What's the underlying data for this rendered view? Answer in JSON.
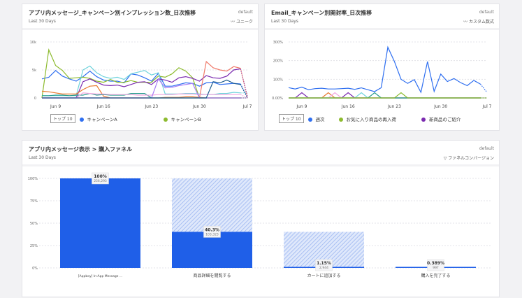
{
  "cards": [
    {
      "title": "アプリ内メッセージ_キャンペーン別インプレッション数_日次推移",
      "subtitle": "Last 30 Days",
      "tag": "default",
      "mode": "ユニーク",
      "mode_icon": "trend-icon",
      "legend_badge": "トップ 10",
      "legend": [
        {
          "name": "キャンペーンA",
          "color": "#2f6ff0"
        },
        {
          "name": "キャンペーンB",
          "color": "#8dbb2f"
        }
      ]
    },
    {
      "title": "Email_キャンペーン別開封率_日次推移",
      "subtitle": "Last 30 Days",
      "tag": "default",
      "mode": "カスタム数式",
      "mode_icon": "trend-icon",
      "legend_badge": "トップ 10",
      "legend": [
        {
          "name": "週次",
          "color": "#2f6ff0"
        },
        {
          "name": "お気に入り商品の再入荷",
          "color": "#8dbb2f"
        },
        {
          "name": "新商品のご紹介",
          "color": "#7b2bb0"
        }
      ]
    },
    {
      "title": "アプリ内メッセージ表示 > 購入ファネル",
      "subtitle": "Last 30 Days",
      "tag": "default",
      "mode": "ファネルコンバージョン",
      "mode_icon": "funnel-icon"
    }
  ],
  "chart_data": [
    {
      "type": "line",
      "x_ticks": [
        "Jun 9",
        "Jun 16",
        "Jun 23",
        "Jun 30",
        "Jul 7"
      ],
      "x_start": "Jun 7",
      "x_end": "Jul 7",
      "y_ticks": [
        "0",
        "5k",
        "10k"
      ],
      "ylim": [
        0,
        10000
      ],
      "grid": true,
      "series": [
        {
          "name": "キャンペーンA",
          "color": "#2f6ff0",
          "values": [
            3400,
            3700,
            4900,
            3900,
            3400,
            3000,
            3800,
            4800,
            3800,
            3200,
            3000,
            3000,
            2700,
            4300,
            4100,
            3600,
            3000,
            4400,
            2100,
            2100,
            2400,
            2700,
            2600,
            2100,
            2700,
            2800,
            2400,
            2500,
            2600,
            2500,
            200
          ]
        },
        {
          "name": "キャンペーンB",
          "color": "#8dbb2f",
          "values": [
            0,
            8600,
            5800,
            4900,
            3500,
            3600,
            3700,
            3500,
            3000,
            2800,
            3300,
            2800,
            2800,
            3100,
            2800,
            2800,
            2800,
            3900,
            3700,
            4300,
            5400,
            4800,
            3600,
            0,
            0,
            0,
            0,
            0,
            0,
            0,
            0
          ]
        },
        {
          "color": "#6fd3dc",
          "values": [
            400,
            400,
            400,
            400,
            400,
            400,
            5000,
            5700,
            4500,
            3800,
            3500,
            3700,
            3300,
            4300,
            4600,
            4900,
            4100,
            4500,
            700,
            700,
            700,
            800,
            800,
            700,
            600,
            600,
            800,
            800,
            1000,
            900,
            900
          ]
        },
        {
          "color": "#7b2bb0",
          "values": [
            0,
            0,
            0,
            0,
            0,
            0,
            2900,
            3400,
            2800,
            2300,
            2200,
            2300,
            2000,
            2400,
            2800,
            2900,
            2400,
            3400,
            3200,
            2800,
            3600,
            3800,
            3500,
            3000,
            4000,
            3600,
            3500,
            3900,
            5000,
            5200,
            300
          ]
        },
        {
          "color": "#e8792f",
          "values": [
            1200,
            1100,
            900,
            700,
            700,
            700,
            1500,
            2100,
            2200,
            300,
            0,
            0,
            0,
            0,
            0,
            0,
            0,
            0,
            100,
            100,
            100,
            200,
            200,
            100,
            0,
            0,
            0,
            0,
            0,
            0,
            0
          ]
        },
        {
          "color": "#f07a6a",
          "values": [
            0,
            0,
            0,
            0,
            0,
            0,
            0,
            0,
            0,
            0,
            0,
            0,
            0,
            0,
            0,
            0,
            0,
            0,
            0,
            0,
            0,
            0,
            0,
            0,
            6500,
            5400,
            5000,
            4800,
            5600,
            5300,
            0
          ]
        },
        {
          "color": "#2a9d8f",
          "values": [
            400,
            400,
            500,
            500,
            400,
            500,
            500,
            800,
            500,
            600,
            500,
            500,
            500,
            800,
            800,
            800,
            0,
            0,
            0,
            0,
            0,
            0,
            0,
            0,
            0,
            0,
            0,
            0,
            0,
            0,
            0
          ]
        },
        {
          "color": "#f2a6e0",
          "values": [
            0,
            0,
            0,
            0,
            0,
            0,
            900,
            800,
            700,
            700,
            600,
            600,
            600,
            600,
            500,
            500,
            500,
            600,
            600,
            600,
            700,
            700,
            700,
            600,
            600,
            600,
            600,
            600,
            600,
            600,
            0
          ]
        },
        {
          "color": "#a77cf5",
          "values": [
            0,
            0,
            0,
            0,
            0,
            0,
            0,
            0,
            0,
            0,
            0,
            0,
            0,
            0,
            0,
            0,
            0,
            3400,
            1800,
            1900,
            2200,
            2400,
            2600,
            0,
            0,
            0,
            0,
            0,
            0,
            0,
            0
          ]
        },
        {
          "color": "#1f5d8f",
          "values": [
            0,
            0,
            0,
            0,
            0,
            0,
            0,
            0,
            0,
            0,
            0,
            0,
            0,
            0,
            0,
            0,
            0,
            0,
            0,
            0,
            0,
            0,
            0,
            0,
            0,
            2900,
            2700,
            3200,
            2600,
            2400,
            0
          ]
        }
      ]
    },
    {
      "type": "line",
      "x_ticks": [
        "Jun 9",
        "Jun 16",
        "Jun 23",
        "Jun 30",
        "Jul 7"
      ],
      "x_start": "Jun 7",
      "x_end": "Jul 7",
      "y_ticks": [
        "0.00%",
        "100%",
        "200%",
        "300%"
      ],
      "ylim": [
        0,
        300
      ],
      "grid": true,
      "series": [
        {
          "name": "週次",
          "color": "#2f6ff0",
          "values": [
            55,
            48,
            58,
            44,
            50,
            52,
            48,
            48,
            50,
            52,
            46,
            54,
            44,
            34,
            55,
            272,
            195,
            100,
            78,
            98,
            30,
            195,
            35,
            128,
            88,
            104,
            82,
            66,
            94,
            74,
            30
          ]
        },
        {
          "name": "お気に入り商品の再入荷",
          "color": "#8dbb2f",
          "values": [
            0,
            0,
            0,
            0,
            0,
            0,
            0,
            0,
            0,
            0,
            0,
            0,
            0,
            0,
            0,
            0,
            0,
            0,
            0,
            0,
            0,
            0,
            0,
            0,
            0,
            0,
            0,
            0,
            0,
            0,
            0
          ]
        },
        {
          "name": "新商品のご紹介",
          "color": "#7b2bb0",
          "values": [
            0,
            0,
            28,
            0,
            0,
            0,
            0,
            0,
            0,
            28,
            0,
            0,
            0,
            0,
            0,
            0,
            0,
            0,
            0,
            0,
            0,
            0,
            0,
            0,
            0,
            0,
            0,
            0,
            0,
            0,
            0
          ]
        },
        {
          "color": "#e8792f",
          "values": [
            0,
            0,
            0,
            0,
            0,
            0,
            28,
            0,
            0,
            0,
            0,
            0,
            0,
            0,
            0,
            0,
            0,
            0,
            0,
            0,
            0,
            0,
            0,
            0,
            0,
            0,
            0,
            0,
            0,
            0,
            0
          ]
        },
        {
          "color": "#f2a6e0",
          "values": [
            0,
            0,
            0,
            0,
            0,
            0,
            0,
            28,
            0,
            0,
            0,
            0,
            0,
            0,
            0,
            0,
            0,
            0,
            0,
            0,
            0,
            0,
            0,
            0,
            0,
            0,
            0,
            0,
            0,
            0,
            0
          ]
        },
        {
          "color": "#6fd3dc",
          "values": [
            0,
            0,
            0,
            0,
            0,
            0,
            0,
            0,
            0,
            0,
            0,
            28,
            0,
            0,
            0,
            0,
            0,
            0,
            0,
            0,
            0,
            0,
            0,
            0,
            0,
            0,
            0,
            0,
            0,
            0,
            0
          ]
        },
        {
          "color": "#2a9d8f",
          "values": [
            0,
            0,
            0,
            0,
            0,
            0,
            0,
            0,
            0,
            0,
            0,
            0,
            0,
            28,
            0,
            0,
            0,
            0,
            0,
            0,
            0,
            0,
            0,
            0,
            0,
            0,
            0,
            0,
            0,
            0,
            0
          ]
        },
        {
          "color": "#8dbb2f",
          "values": [
            0,
            0,
            0,
            0,
            0,
            0,
            0,
            0,
            0,
            0,
            0,
            0,
            0,
            0,
            0,
            0,
            0,
            28,
            0,
            0,
            0,
            0,
            0,
            0,
            0,
            0,
            0,
            0,
            0,
            0,
            0
          ]
        }
      ]
    },
    {
      "type": "bar",
      "y_ticks": [
        "0%",
        "25%",
        "50%",
        "75%",
        "100%"
      ],
      "ylim": [
        0,
        100
      ],
      "grid": true,
      "categories": [
        "[Appboy] In-App Message ...",
        "商品詳細を閲覧する",
        "カートに追加する",
        "購入を完了する"
      ],
      "conversion_pct": [
        100,
        40.3,
        1.15,
        0.389
      ],
      "previous_pct": [
        100,
        100,
        40.3,
        1.15
      ],
      "labels": [
        "100%",
        "40.3%",
        "1.15%",
        "0.389%"
      ],
      "counts": [
        "256,293",
        "103,323",
        "2,944",
        "997"
      ],
      "bar_color": "#1f5fe8"
    }
  ]
}
